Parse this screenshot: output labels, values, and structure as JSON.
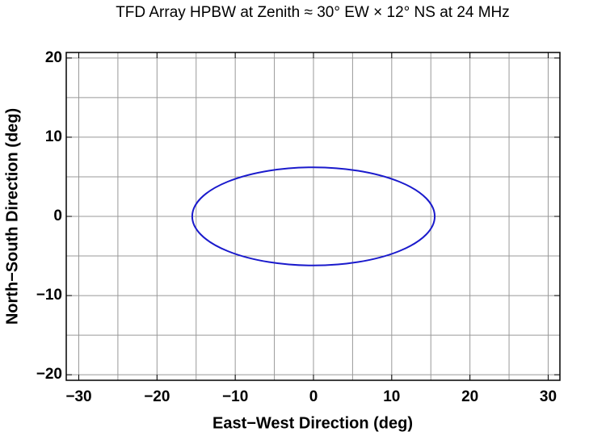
{
  "chart_data": {
    "type": "ellipse",
    "title": "TFD Array HPBW at Zenith ≈ 30° EW × 12° NS at 24 MHz",
    "x_label": "East−West Direction (deg)",
    "y_label": "North−South Direction (deg)",
    "center": [
      0,
      0
    ],
    "semi_axes": [
      15.5,
      6.2
    ],
    "color": "#1a1acc",
    "xlim": [
      -31.6,
      31.5
    ],
    "ylim": [
      -20.7,
      20.7
    ],
    "xticks": [
      {
        "value": -30,
        "label": "−30"
      },
      {
        "value": -20,
        "label": "−20"
      },
      {
        "value": -10,
        "label": "−10"
      },
      0,
      10,
      20,
      30
    ],
    "yticks": [
      {
        "value": -20,
        "label": "−20"
      },
      {
        "value": -10,
        "label": "−10"
      },
      0,
      10,
      20
    ],
    "xgrid": [
      -30,
      -25,
      -20,
      -15,
      -10,
      -5,
      0,
      5,
      10,
      15,
      20,
      25,
      30
    ],
    "ygrid": [
      -20,
      -15,
      -10,
      -5,
      0,
      5,
      10,
      15,
      20
    ],
    "grid": true
  }
}
